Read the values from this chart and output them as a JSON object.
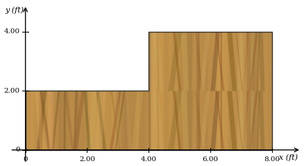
{
  "shape_vertices": [
    [
      0,
      0
    ],
    [
      8,
      0
    ],
    [
      8,
      4
    ],
    [
      4,
      4
    ],
    [
      4,
      2
    ],
    [
      0,
      2
    ],
    [
      0,
      0
    ]
  ],
  "xlim": [
    -0.5,
    9.0
  ],
  "ylim": [
    -0.45,
    5.0
  ],
  "xticks": [
    0,
    2.0,
    4.0,
    6.0,
    8.0
  ],
  "yticks": [
    0,
    2.0,
    4.0
  ],
  "xlabel": "x (ft)",
  "ylabel": "y (ft)",
  "wood_base_r": 0.73,
  "wood_base_g": 0.55,
  "wood_base_b": 0.28,
  "edge_color": "#333333",
  "figsize": [
    4.39,
    2.4
  ],
  "dpi": 100
}
